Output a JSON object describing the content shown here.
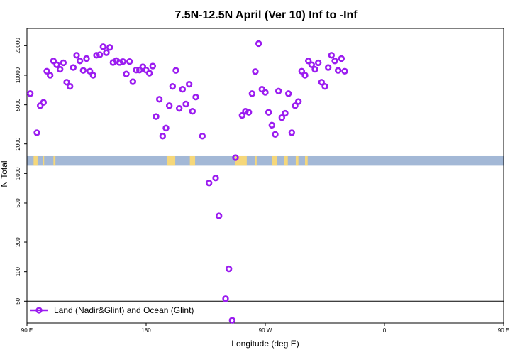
{
  "chart_data": {
    "type": "scatter",
    "title": "7.5N-12.5N April (Ver 10)   Inf to -Inf",
    "xlabel": "Longitude (deg E)",
    "ylabel": "N Total",
    "y_scale": "log",
    "xlim": [
      90,
      450
    ],
    "ylim": [
      30,
      30000
    ],
    "x_ticks": [
      {
        "value": 90,
        "label": "90 E"
      },
      {
        "value": 180,
        "label": "180"
      },
      {
        "value": 270,
        "label": "90 W"
      },
      {
        "value": 360,
        "label": "0"
      },
      {
        "value": 450,
        "label": "90 E"
      },
      {
        "value": 540,
        "label": "180"
      }
    ],
    "y_ticks": [
      {
        "value": 50,
        "label": "50"
      },
      {
        "value": 100,
        "label": "100"
      },
      {
        "value": 200,
        "label": "200"
      },
      {
        "value": 500,
        "label": "500"
      },
      {
        "value": 1000,
        "label": "1000"
      },
      {
        "value": 2000,
        "label": "2000"
      },
      {
        "value": 5000,
        "label": "5000"
      },
      {
        "value": 10000,
        "label": "10000"
      },
      {
        "value": 20000,
        "label": "20000"
      }
    ],
    "reference_line": 50,
    "map_strip": {
      "y_low": 1200,
      "y_high": 1500,
      "ocean_color": "#a3b8d6",
      "land_color": "#f5d77a"
    },
    "legend": {
      "placement": "bottom-left",
      "label": "Land (Nadir&Glint) and Ocean (Glint)"
    },
    "series": [
      {
        "name": "Land (Nadir&Glint) and Ocean (Glint)",
        "color": "#9b1cf0",
        "points": [
          [
            92.5,
            6500
          ],
          [
            97.5,
            2600
          ],
          [
            100,
            4900
          ],
          [
            102.5,
            5300
          ],
          [
            105,
            11000
          ],
          [
            107.5,
            10000
          ],
          [
            110,
            14000
          ],
          [
            112.5,
            12800
          ],
          [
            115,
            11500
          ],
          [
            117.5,
            13400
          ],
          [
            120,
            8500
          ],
          [
            122.5,
            7700
          ],
          [
            125,
            12000
          ],
          [
            127.5,
            16000
          ],
          [
            130,
            14000
          ],
          [
            132.5,
            11200
          ],
          [
            135,
            14800
          ],
          [
            137.5,
            11000
          ],
          [
            140,
            10000
          ],
          [
            142.5,
            16000
          ],
          [
            145,
            16200
          ],
          [
            147.5,
            19500
          ],
          [
            150,
            17000
          ],
          [
            152.5,
            19200
          ],
          [
            155,
            13500
          ],
          [
            157.5,
            14100
          ],
          [
            160,
            13500
          ],
          [
            162.5,
            13800
          ],
          [
            165,
            10300
          ],
          [
            167.5,
            13800
          ],
          [
            170,
            8600
          ],
          [
            172.5,
            11300
          ],
          [
            175,
            11300
          ],
          [
            177.5,
            12200
          ],
          [
            180,
            11300
          ],
          [
            182.5,
            10500
          ],
          [
            185,
            12400
          ],
          [
            187.5,
            3800
          ],
          [
            190,
            5700
          ],
          [
            192.5,
            2400
          ],
          [
            195,
            2900
          ],
          [
            197.5,
            4900
          ],
          [
            200,
            7700
          ],
          [
            202.5,
            11200
          ],
          [
            205,
            4600
          ],
          [
            207.5,
            7200
          ],
          [
            210,
            5100
          ],
          [
            212.5,
            8100
          ],
          [
            215,
            4300
          ],
          [
            217.5,
            6000
          ],
          [
            222.5,
            2400
          ],
          [
            227.5,
            800
          ],
          [
            232.5,
            900
          ],
          [
            235,
            370
          ],
          [
            240,
            53
          ],
          [
            242.5,
            107
          ],
          [
            245,
            32
          ],
          [
            247.5,
            1450
          ],
          [
            252.5,
            3900
          ],
          [
            255,
            4300
          ],
          [
            257.5,
            4200
          ],
          [
            260,
            6500
          ],
          [
            262.5,
            10900
          ],
          [
            265,
            21000
          ],
          [
            267.5,
            7200
          ],
          [
            270,
            6700
          ],
          [
            272.5,
            4200
          ],
          [
            275,
            3100
          ],
          [
            277.5,
            2500
          ],
          [
            280,
            6900
          ],
          [
            282.5,
            3700
          ],
          [
            285,
            4100
          ],
          [
            287.5,
            6500
          ],
          [
            290,
            2600
          ],
          [
            292.5,
            4900
          ],
          [
            295,
            5400
          ],
          [
            297.5,
            11000
          ],
          [
            300,
            10000
          ],
          [
            302.5,
            14000
          ],
          [
            305,
            12800
          ],
          [
            307.5,
            11500
          ],
          [
            310,
            13400
          ],
          [
            312.5,
            8500
          ],
          [
            315,
            7700
          ],
          [
            317.5,
            12000
          ],
          [
            320,
            16000
          ],
          [
            322.5,
            14000
          ],
          [
            325,
            11200
          ],
          [
            327.5,
            14800
          ],
          [
            330,
            11000
          ]
        ]
      }
    ]
  }
}
